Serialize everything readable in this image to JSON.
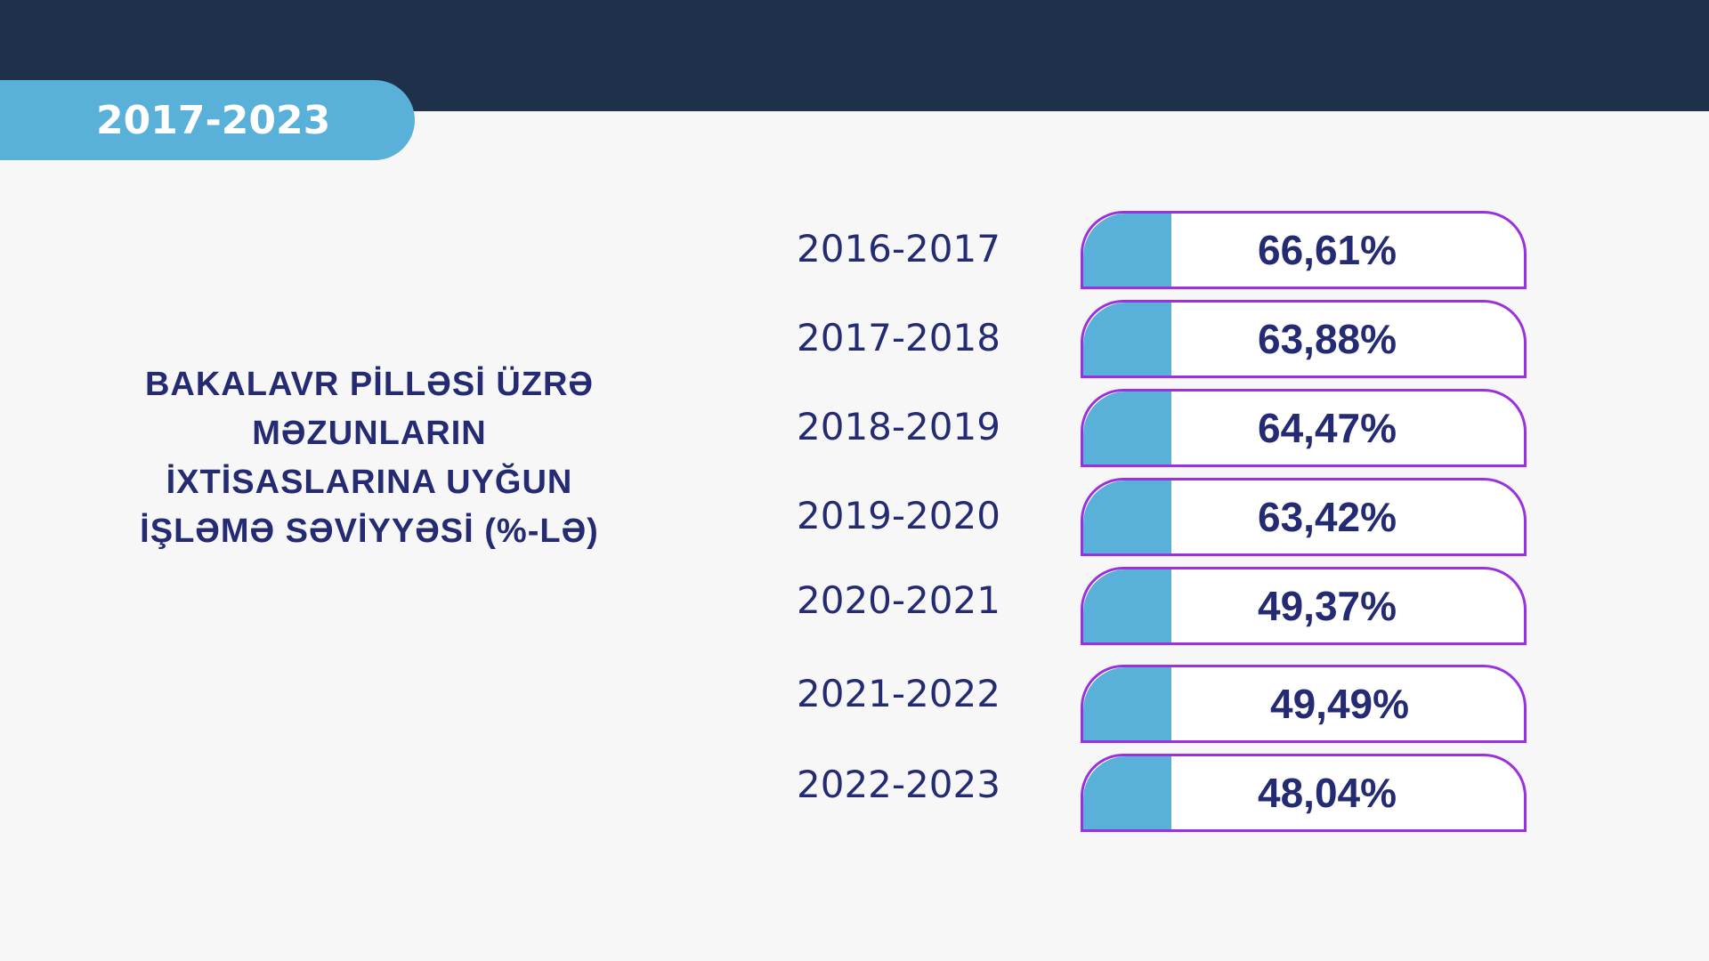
{
  "header": {
    "range_label": "2017-2023"
  },
  "title_lines": [
    "BAKALAVR PİLLƏSİ ÜZRƏ",
    "MƏZUNLARIN",
    "İXTİSASLARINA UYĞUN",
    "İŞLƏMƏ SƏVİYYƏSİ (%-LƏ)"
  ],
  "colors": {
    "accent": "#59b0d8",
    "border": "#9b30e0",
    "text": "#252b72",
    "topbar": "#1f304a"
  },
  "chart_data": {
    "type": "table",
    "rows": [
      {
        "year": "2016-2017",
        "value_label": "66,61%",
        "value": 66.61
      },
      {
        "year": "2017-2018",
        "value_label": "63,88%",
        "value": 63.88
      },
      {
        "year": "2018-2019",
        "value_label": "64,47%",
        "value": 64.47
      },
      {
        "year": "2019-2020",
        "value_label": "63,42%",
        "value": 63.42
      },
      {
        "year": "2020-2021",
        "value_label": "49,37%",
        "value": 49.37
      },
      {
        "year": "2021-2022",
        "value_label": "49,49%",
        "value": 49.49
      },
      {
        "year": "2022-2023",
        "value_label": "48,04%",
        "value": 48.04
      }
    ]
  }
}
